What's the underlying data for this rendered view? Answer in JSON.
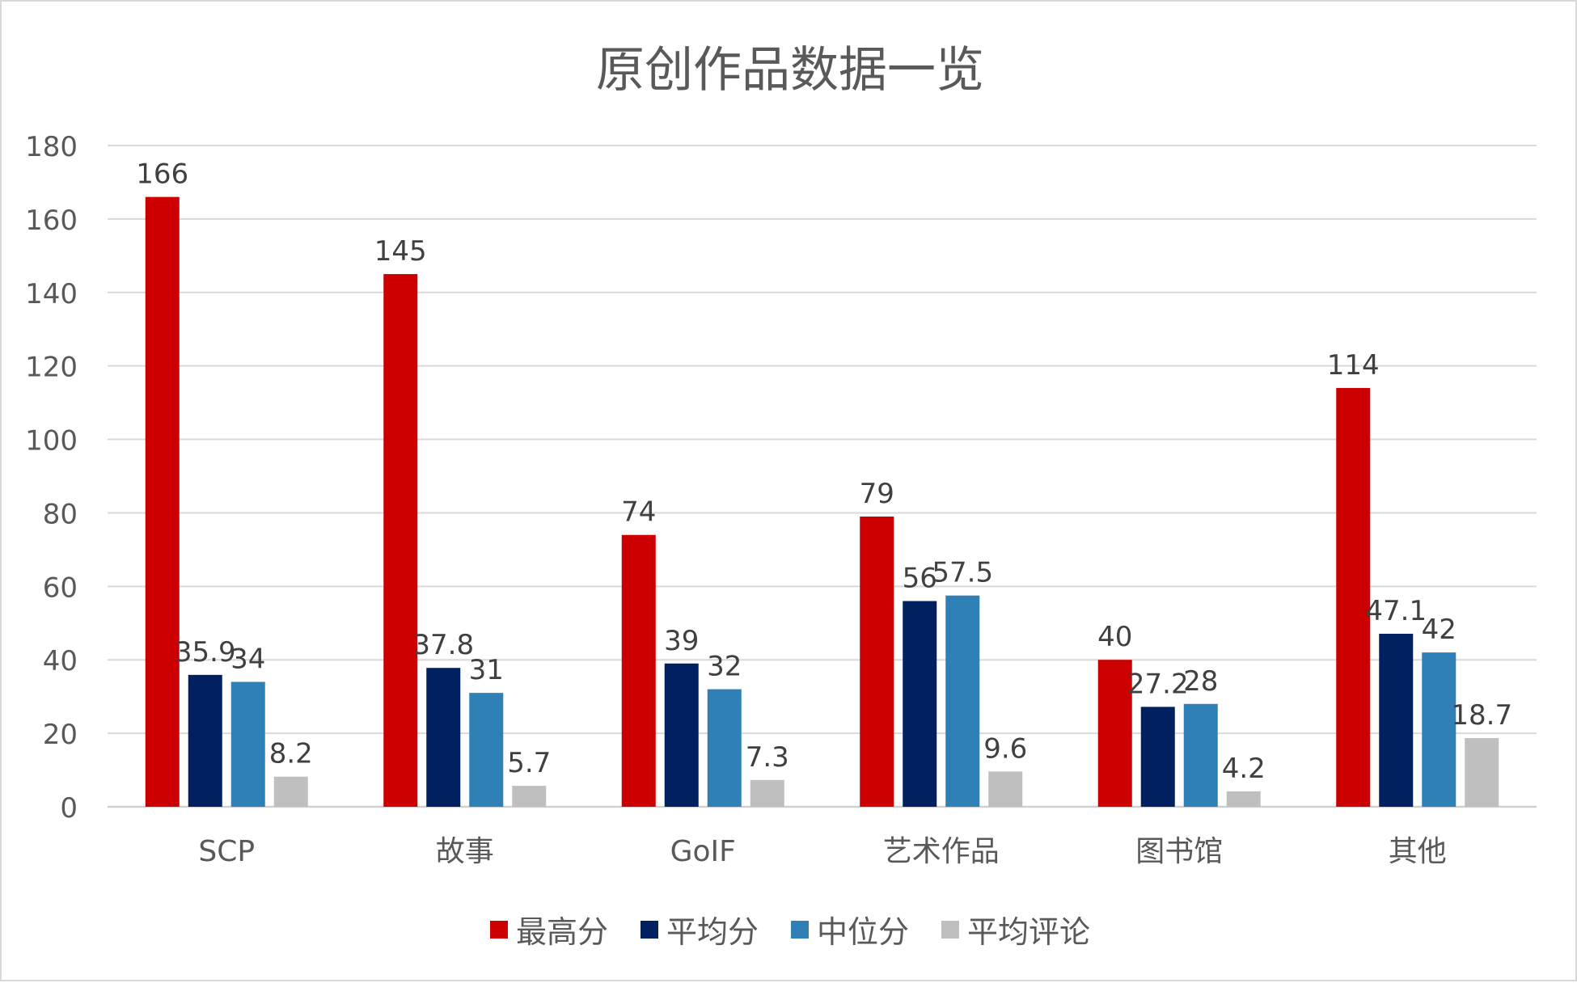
{
  "chart_data": {
    "type": "bar",
    "title": "原创作品数据一览",
    "categories": [
      "SCP",
      "故事",
      "GoIF",
      "艺术作品",
      "图书馆",
      "其他"
    ],
    "series": [
      {
        "name": "最高分",
        "color": "#cc0000",
        "values": [
          166,
          145,
          74,
          79,
          40,
          114
        ]
      },
      {
        "name": "平均分",
        "color": "#002060",
        "values": [
          35.9,
          37.8,
          39,
          56,
          27.2,
          47.1
        ]
      },
      {
        "name": "中位分",
        "color": "#2e80b6",
        "values": [
          34,
          31,
          32,
          57.5,
          28,
          42
        ]
      },
      {
        "name": "平均评论",
        "color": "#bfbfbf",
        "values": [
          8.2,
          5.7,
          7.3,
          9.6,
          4.2,
          18.7
        ]
      }
    ],
    "ylim": [
      0,
      180
    ],
    "yticks": [
      0,
      20,
      40,
      60,
      80,
      100,
      120,
      140,
      160,
      180
    ],
    "grid": true,
    "legend_position": "bottom",
    "data_labels": true
  }
}
